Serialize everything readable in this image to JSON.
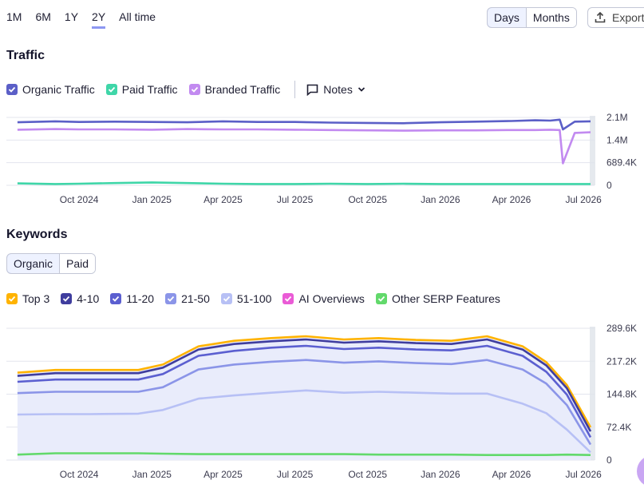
{
  "periods": [
    "1M",
    "6M",
    "1Y",
    "2Y",
    "All time"
  ],
  "active_period": "2Y",
  "granularity": {
    "days": "Days",
    "months": "Months",
    "active": "Days"
  },
  "export_label": "Export",
  "traffic": {
    "title": "Traffic",
    "legend": [
      {
        "label": "Organic Traffic",
        "color": "#5b5fc7"
      },
      {
        "label": "Paid Traffic",
        "color": "#3fd6a8"
      },
      {
        "label": "Branded Traffic",
        "color": "#c28af0"
      }
    ],
    "notes_label": "Notes"
  },
  "keywords": {
    "title": "Keywords",
    "tabs": [
      "Organic",
      "Paid"
    ],
    "active_tab": "Organic",
    "legend": [
      {
        "label": "Top 3",
        "color": "#ffb300"
      },
      {
        "label": "4-10",
        "color": "#3f3d9e"
      },
      {
        "label": "11-20",
        "color": "#5b5fd0"
      },
      {
        "label": "21-50",
        "color": "#8b95e8"
      },
      {
        "label": "51-100",
        "color": "#b7c0f5"
      },
      {
        "label": "AI Overviews",
        "color": "#ea5bd6"
      },
      {
        "label": "Other SERP Features",
        "color": "#62d96b"
      }
    ]
  },
  "chart_data": [
    {
      "type": "line",
      "title": "Traffic",
      "x_ticks": [
        "Oct 2024",
        "Jan 2025",
        "Apr 2025",
        "Jul 2025",
        "Oct 2025",
        "Jan 2026",
        "Apr 2026",
        "Jul 2026"
      ],
      "y_ticks": [
        "2.1M",
        "1.4M",
        "689.4K",
        "0"
      ],
      "ylim": [
        0,
        2100000
      ],
      "x": [
        "2024-07-15",
        "2024-09-01",
        "2024-10-01",
        "2024-11-15",
        "2025-01-01",
        "2025-02-15",
        "2025-04-01",
        "2025-05-15",
        "2025-07-01",
        "2025-08-15",
        "2025-10-01",
        "2025-11-15",
        "2026-01-01",
        "2026-02-15",
        "2026-04-01",
        "2026-05-01",
        "2026-05-20",
        "2026-06-01",
        "2026-06-05",
        "2026-06-20",
        "2026-07-10"
      ],
      "series": [
        {
          "name": "Organic Traffic",
          "color": "#5b5fc7",
          "values": [
            1950000,
            1980000,
            1960000,
            1970000,
            1960000,
            1950000,
            1980000,
            1960000,
            1960000,
            1940000,
            1930000,
            1920000,
            1950000,
            1970000,
            1990000,
            2010000,
            2000000,
            2030000,
            1730000,
            1970000,
            1980000
          ]
        },
        {
          "name": "Branded Traffic",
          "color": "#c28af0",
          "values": [
            1720000,
            1740000,
            1730000,
            1730000,
            1720000,
            1740000,
            1730000,
            1730000,
            1720000,
            1710000,
            1700000,
            1690000,
            1700000,
            1700000,
            1710000,
            1710000,
            1720000,
            1710000,
            680000,
            1620000,
            1640000
          ]
        },
        {
          "name": "Paid Traffic",
          "color": "#3fd6a8",
          "values": [
            60000,
            40000,
            50000,
            70000,
            90000,
            70000,
            50000,
            40000,
            40000,
            50000,
            40000,
            50000,
            40000,
            40000,
            40000,
            40000,
            40000,
            40000,
            40000,
            40000,
            40000
          ]
        }
      ]
    },
    {
      "type": "area",
      "title": "Keywords",
      "x_ticks": [
        "Oct 2024",
        "Jan 2025",
        "Apr 2025",
        "Jul 2025",
        "Oct 2025",
        "Jan 2026",
        "Apr 2026",
        "Jul 2026"
      ],
      "y_ticks": [
        "289.6K",
        "217.2K",
        "144.8K",
        "72.4K",
        "0"
      ],
      "ylim": [
        0,
        289600
      ],
      "x": [
        "2024-07-15",
        "2024-09-01",
        "2024-10-15",
        "2024-12-15",
        "2025-01-15",
        "2025-03-01",
        "2025-04-15",
        "2025-06-01",
        "2025-07-15",
        "2025-09-01",
        "2025-10-15",
        "2025-12-01",
        "2026-01-15",
        "2026-03-01",
        "2026-04-15",
        "2026-05-15",
        "2026-06-10",
        "2026-07-10"
      ],
      "series": [
        {
          "name": "Top 3",
          "color": "#ffb300",
          "values": [
            192000,
            198000,
            198000,
            198000,
            210000,
            250000,
            262000,
            268000,
            272000,
            265000,
            268000,
            264000,
            262000,
            272000,
            250000,
            215000,
            165000,
            72000
          ]
        },
        {
          "name": "4-10",
          "color": "#3f3d9e",
          "values": [
            185000,
            191000,
            191000,
            191000,
            203000,
            243000,
            255000,
            261000,
            265000,
            258000,
            261000,
            257000,
            255000,
            265000,
            243000,
            208000,
            158000,
            63000
          ]
        },
        {
          "name": "11-20",
          "color": "#5b5fd0",
          "values": [
            172000,
            177000,
            177000,
            177000,
            189000,
            229000,
            240000,
            247000,
            251000,
            244000,
            247000,
            243000,
            241000,
            251000,
            229000,
            194000,
            144000,
            50000
          ]
        },
        {
          "name": "21-50",
          "color": "#8b95e8",
          "values": [
            147000,
            150000,
            150000,
            150000,
            160000,
            199000,
            210000,
            216000,
            220000,
            214000,
            217000,
            213000,
            211000,
            220000,
            199000,
            168000,
            121000,
            34000
          ]
        },
        {
          "name": "51-100",
          "color": "#b7c0f5",
          "values": [
            100000,
            101000,
            101000,
            102000,
            110000,
            135000,
            142000,
            148000,
            153000,
            148000,
            150000,
            148000,
            146000,
            146000,
            124000,
            103000,
            67000,
            17000
          ]
        },
        {
          "name": "Other SERP Features",
          "color": "#62d96b",
          "values": [
            12000,
            15000,
            15000,
            15000,
            14000,
            13000,
            13000,
            13000,
            13000,
            13000,
            12000,
            12000,
            12000,
            11000,
            11000,
            11000,
            12000,
            11000
          ]
        }
      ]
    }
  ]
}
